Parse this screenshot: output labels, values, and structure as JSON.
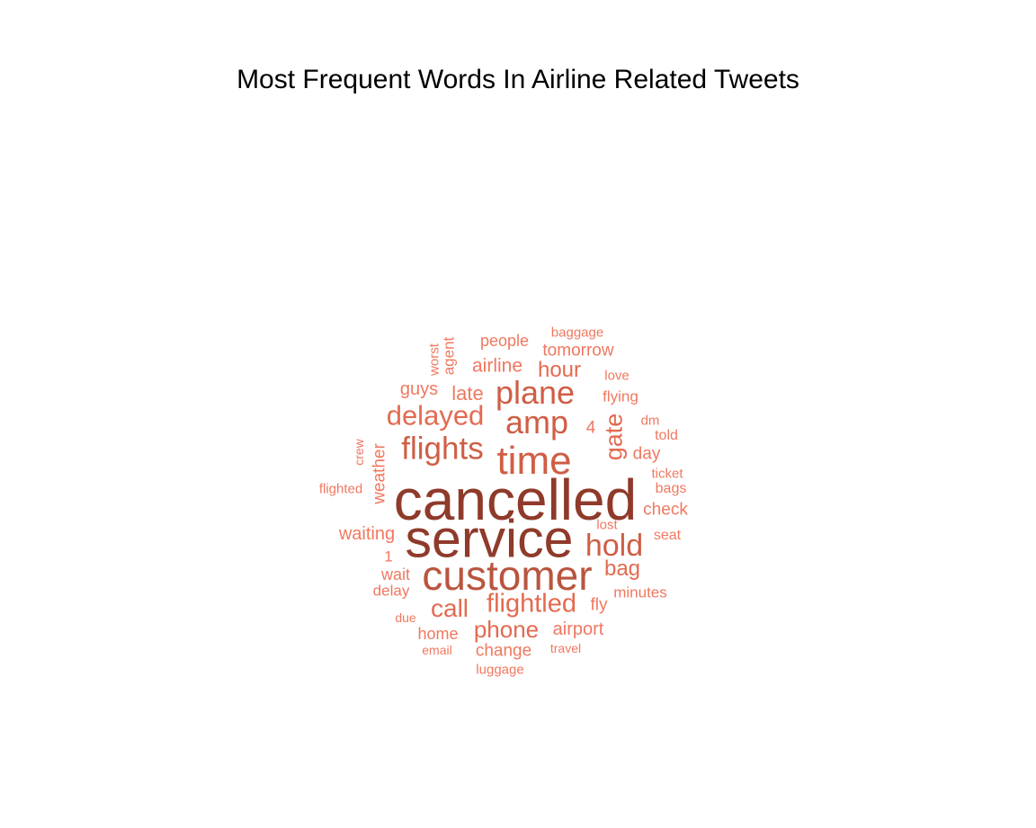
{
  "title": "Most Frequent Words In Airline Related Tweets",
  "chart_data": {
    "type": "wordcloud",
    "title": "Most Frequent Words In Airline Related Tweets",
    "color_scale": [
      "#f07860",
      "#e36a50",
      "#cf5e45",
      "#b9553f",
      "#8f3a2a"
    ],
    "words": [
      {
        "text": "cancelled",
        "weight": 100,
        "rotated": false
      },
      {
        "text": "service",
        "weight": 92,
        "rotated": false
      },
      {
        "text": "customer",
        "weight": 72,
        "rotated": false
      },
      {
        "text": "time",
        "weight": 68,
        "rotated": false
      },
      {
        "text": "plane",
        "weight": 57,
        "rotated": false
      },
      {
        "text": "amp",
        "weight": 56,
        "rotated": false
      },
      {
        "text": "flights",
        "weight": 55,
        "rotated": false
      },
      {
        "text": "hold",
        "weight": 53,
        "rotated": false
      },
      {
        "text": "delayed",
        "weight": 48,
        "rotated": false
      },
      {
        "text": "flightled",
        "weight": 46,
        "rotated": false
      },
      {
        "text": "call",
        "weight": 44,
        "rotated": false
      },
      {
        "text": "gate",
        "weight": 42,
        "rotated": true
      },
      {
        "text": "phone",
        "weight": 40,
        "rotated": false
      },
      {
        "text": "hour",
        "weight": 38,
        "rotated": false
      },
      {
        "text": "bag",
        "weight": 37,
        "rotated": false
      },
      {
        "text": "late",
        "weight": 34,
        "rotated": false
      },
      {
        "text": "airline",
        "weight": 33,
        "rotated": false
      },
      {
        "text": "guys",
        "weight": 32,
        "rotated": false
      },
      {
        "text": "waiting",
        "weight": 31,
        "rotated": false
      },
      {
        "text": "airport",
        "weight": 31,
        "rotated": false
      },
      {
        "text": "weather",
        "weight": 30,
        "rotated": true
      },
      {
        "text": "check",
        "weight": 30,
        "rotated": false
      },
      {
        "text": "change",
        "weight": 30,
        "rotated": false
      },
      {
        "text": "tomorrow",
        "weight": 30,
        "rotated": false
      },
      {
        "text": "fly",
        "weight": 30,
        "rotated": false
      },
      {
        "text": "day",
        "weight": 29,
        "rotated": false
      },
      {
        "text": "4",
        "weight": 29,
        "rotated": false
      },
      {
        "text": "home",
        "weight": 28,
        "rotated": false
      },
      {
        "text": "people",
        "weight": 28,
        "rotated": false
      },
      {
        "text": "wait",
        "weight": 28,
        "rotated": false
      },
      {
        "text": "delay",
        "weight": 27,
        "rotated": false
      },
      {
        "text": "1",
        "weight": 27,
        "rotated": false
      },
      {
        "text": "minutes",
        "weight": 27,
        "rotated": false
      },
      {
        "text": "flying",
        "weight": 27,
        "rotated": false
      },
      {
        "text": "agent",
        "weight": 26,
        "rotated": true
      },
      {
        "text": "bags",
        "weight": 25,
        "rotated": false
      },
      {
        "text": "seat",
        "weight": 25,
        "rotated": false
      },
      {
        "text": "told",
        "weight": 25,
        "rotated": false
      },
      {
        "text": "luggage",
        "weight": 24,
        "rotated": false
      },
      {
        "text": "ticket",
        "weight": 24,
        "rotated": false
      },
      {
        "text": "love",
        "weight": 24,
        "rotated": false
      },
      {
        "text": "worst",
        "weight": 24,
        "rotated": true
      },
      {
        "text": "flighted",
        "weight": 24,
        "rotated": false
      },
      {
        "text": "lost",
        "weight": 24,
        "rotated": false
      },
      {
        "text": "dm",
        "weight": 23,
        "rotated": false
      },
      {
        "text": "baggage",
        "weight": 23,
        "rotated": false
      },
      {
        "text": "email",
        "weight": 22,
        "rotated": false
      },
      {
        "text": "due",
        "weight": 22,
        "rotated": false
      },
      {
        "text": "travel",
        "weight": 22,
        "rotated": false
      },
      {
        "text": "crew",
        "weight": 22,
        "rotated": true
      }
    ]
  }
}
